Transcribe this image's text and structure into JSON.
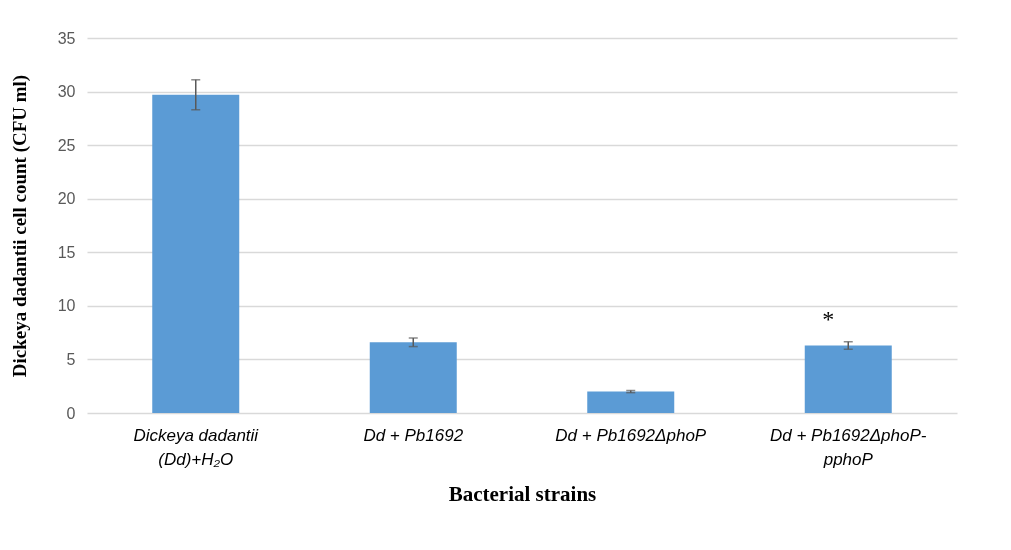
{
  "chart_data": {
    "type": "bar",
    "xlabel": "Bacterial strains",
    "ylabel": "Dickeya dadantii cell count (CFU ml)",
    "categories": [
      "Dickeya dadantii\n(Dd)+H₂O",
      "Dd + Pb1692",
      "Dd + Pb1692ΔphoP",
      "Dd + Pb1692ΔphoP-\npphoP"
    ],
    "values": [
      29.7,
      6.6,
      2.0,
      6.3
    ],
    "errors": [
      1.4,
      0.4,
      0.1,
      0.35
    ],
    "color": "#5b9bd5",
    "ylim": [
      0,
      35
    ],
    "yticks": [
      0,
      5,
      10,
      15,
      20,
      25,
      30,
      35
    ],
    "grid": "y",
    "annotations": [
      "*"
    ]
  }
}
